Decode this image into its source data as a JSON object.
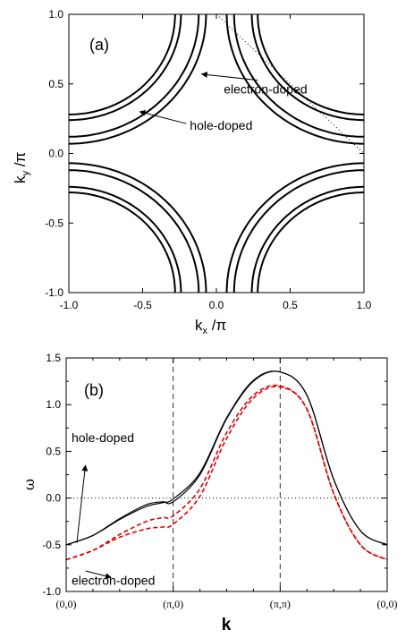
{
  "chart_data": [
    {
      "type": "line",
      "panel_label": "(a)",
      "xlabel_main": "k",
      "xlabel_sub": "x",
      "xlabel_tail": " /π",
      "ylabel_main": "k",
      "ylabel_sub": "y",
      "ylabel_tail": " /π",
      "xlim": [
        -1.0,
        1.0
      ],
      "ylim": [
        -1.0,
        1.0
      ],
      "xticks": [
        "-1.0",
        "-0.5",
        "0.0",
        "0.5",
        "1.0"
      ],
      "yticks": [
        "-1.0",
        "-0.5",
        "0.0",
        "0.5",
        "1.0"
      ],
      "xtick_values": [
        -1.0,
        -0.5,
        0.0,
        0.5,
        1.0
      ],
      "ytick_values": [
        -1.0,
        -0.5,
        0.0,
        0.5,
        1.0
      ],
      "annotations": [
        {
          "text": "electron-doped",
          "x": 0.05,
          "y": 0.43,
          "arrow_to": [
            -0.1,
            0.57
          ]
        },
        {
          "text": "hole-doped",
          "x": -0.18,
          "y": 0.17,
          "arrow_to": [
            -0.52,
            0.3
          ]
        }
      ],
      "fermi_surfaces": [
        {
          "name": "hole-doped",
          "radius": 0.72,
          "style": "solid"
        },
        {
          "name": "hole-doped",
          "radius": 0.76,
          "style": "solid"
        },
        {
          "name": "electron-doped",
          "radius": 0.88,
          "style": "solid"
        },
        {
          "name": "electron-doped",
          "radius": 0.93,
          "style": "solid"
        }
      ],
      "dotted_reference": [
        [
          0.0,
          1.0
        ],
        [
          1.0,
          0.0
        ]
      ]
    },
    {
      "type": "line",
      "panel_label": "(b)",
      "xlabel": "k",
      "ylabel": "ω",
      "ylim": [
        -1.0,
        1.5
      ],
      "yticks": [
        "-1.0",
        "-0.5",
        "0.0",
        "0.5",
        "1.0",
        "1.5"
      ],
      "ytick_values": [
        -1.0,
        -0.5,
        0.0,
        0.5,
        1.0,
        1.5
      ],
      "x_categories": [
        "(0,0)",
        "(π,0)",
        "(π,π)",
        "(0,0)"
      ],
      "x_category_positions": [
        0,
        1,
        2,
        3
      ],
      "annotations": [
        {
          "text": "hole-doped",
          "x": 0.05,
          "y": 0.6,
          "arrow_from": [
            0.1,
            -0.48
          ],
          "arrow_to": [
            0.18,
            0.35
          ]
        },
        {
          "text": "electron-doped",
          "x": 0.05,
          "y": -0.93,
          "arrow_from": [
            0.18,
            -0.78
          ],
          "arrow_to": [
            0.42,
            -0.85
          ]
        }
      ],
      "series": [
        {
          "label": "hole-doped",
          "color": "#000000",
          "style": "solid",
          "x": [
            0,
            0.25,
            0.5,
            0.75,
            0.9,
            1.0,
            1.25,
            1.5,
            1.75,
            2.0,
            2.25,
            2.5,
            2.75,
            3.0
          ],
          "y": [
            -0.5,
            -0.4,
            -0.22,
            -0.07,
            -0.04,
            -0.04,
            0.25,
            0.85,
            1.25,
            1.35,
            1.1,
            0.2,
            -0.35,
            -0.5
          ]
        },
        {
          "label": "hole-doped",
          "color": "#000000",
          "style": "solid",
          "x": [
            0,
            0.25,
            0.5,
            0.75,
            0.9,
            1.0,
            1.25,
            1.5,
            1.75,
            2.0,
            2.25,
            2.5,
            2.75,
            3.0
          ],
          "y": [
            -0.5,
            -0.4,
            -0.23,
            -0.09,
            -0.05,
            -0.01,
            0.27,
            0.86,
            1.26,
            1.35,
            1.1,
            0.2,
            -0.35,
            -0.5
          ]
        },
        {
          "label": "electron-doped",
          "color": "#dd0000",
          "style": "dashed",
          "x": [
            0,
            0.25,
            0.5,
            0.75,
            0.9,
            1.0,
            1.25,
            1.5,
            1.75,
            2.0,
            2.25,
            2.5,
            2.75,
            3.0
          ],
          "y": [
            -0.66,
            -0.56,
            -0.39,
            -0.25,
            -0.21,
            -0.19,
            0.1,
            0.7,
            1.1,
            1.2,
            0.95,
            0.05,
            -0.5,
            -0.66
          ]
        },
        {
          "label": "electron-doped",
          "color": "#dd0000",
          "style": "dashed",
          "x": [
            0,
            0.25,
            0.5,
            0.75,
            0.9,
            1.0,
            1.25,
            1.5,
            1.75,
            2.0,
            2.25,
            2.5,
            2.75,
            3.0
          ],
          "y": [
            -0.66,
            -0.56,
            -0.42,
            -0.33,
            -0.31,
            -0.28,
            0.02,
            0.64,
            1.07,
            1.19,
            0.95,
            0.05,
            -0.5,
            -0.66
          ]
        }
      ],
      "reference_lines": {
        "horizontal_dotted_at": 0.0,
        "vertical_dashed_at": [
          1,
          2
        ]
      }
    }
  ]
}
